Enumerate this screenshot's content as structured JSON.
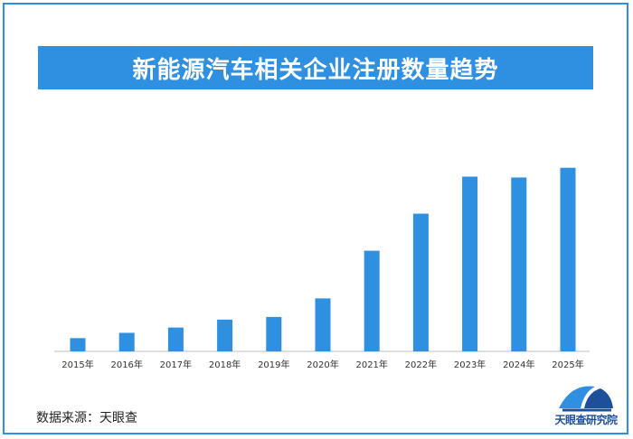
{
  "colors": {
    "accent": "#2f8fe0",
    "bar": "#2f8fe0",
    "logo": "#1d4f9a"
  },
  "chart_data": {
    "type": "bar",
    "title": "新能源汽车相关企业注册数量趋势",
    "categories": [
      "2015年",
      "2016年",
      "2017年",
      "2018年",
      "2019年",
      "2020年",
      "2021年",
      "2022年",
      "2023年",
      "2024年",
      "2025年"
    ],
    "values": [
      7.5,
      10.5,
      13.5,
      18,
      19.5,
      30,
      57,
      78,
      99,
      98.5,
      104
    ],
    "ylim": [
      0,
      110
    ],
    "grid": false,
    "legend": "none"
  },
  "source": {
    "label": "数据来源：天眼查"
  },
  "logo": {
    "icon": "tianyancha-logo-icon",
    "text": "天眼查研究院"
  }
}
